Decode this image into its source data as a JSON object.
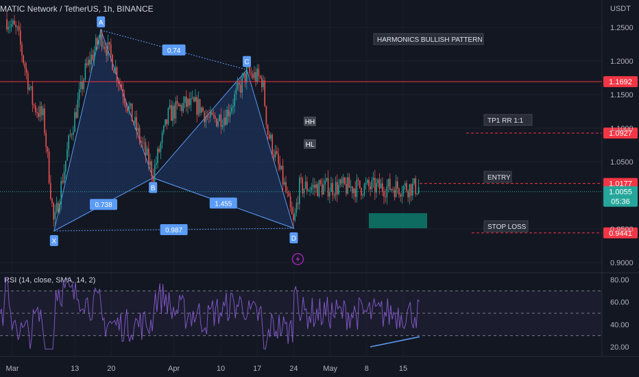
{
  "header": {
    "symbol_title": "MATIC Network / TetherUS, 1h, BINANCE"
  },
  "colors": {
    "bg": "#131722",
    "pattern_fill": "#1f3a6b",
    "pattern_line": "#5b9cf6",
    "up_candle": "#26a69a",
    "down_candle": "#ef5350",
    "rsi_line": "#7e57c2",
    "red_label": "#f23645",
    "current_price_label": "#26a69a",
    "target_box": "#0e7a6a"
  },
  "chart_data": {
    "type": "candlestick",
    "title": "MATIC Network / TetherUS, 1h, BINANCE",
    "price_axis": {
      "unit_label": "USDT",
      "ticks": [
        "1.2500",
        "1.2000",
        "1.1500",
        "1.1000",
        "1.0500",
        "0.9500",
        "0.9000"
      ],
      "ylim": [
        0.88,
        1.28
      ]
    },
    "x_axis": {
      "ticks": [
        "Mar",
        "13",
        "20",
        "Apr",
        "10",
        "17",
        "24",
        "May",
        "8",
        "15"
      ]
    },
    "harmonic_points": [
      {
        "label": "X",
        "date": "Mar 9",
        "price": 0.947
      },
      {
        "label": "A",
        "date": "Mar 18",
        "price": 1.246
      },
      {
        "label": "B",
        "date": "Mar 28",
        "price": 1.026
      },
      {
        "label": "C",
        "date": "Apr 15",
        "price": 1.187
      },
      {
        "label": "D",
        "date": "Apr 24",
        "price": 0.951
      }
    ],
    "ratios": [
      {
        "label": "0.738",
        "between": "X-B"
      },
      {
        "label": "0.74",
        "between": "A-C"
      },
      {
        "label": "1.455",
        "between": "B-D"
      },
      {
        "label": "0.987",
        "between": "X-D"
      }
    ],
    "structure_labels": [
      "HH",
      "HL"
    ],
    "pattern_label": "HARMONICS BULLISH PATTERN",
    "levels": [
      {
        "name": "resistance",
        "price": 1.1692,
        "label": "1.1692"
      },
      {
        "name": "tp1",
        "price": 1.0927,
        "label": "1.0927",
        "text": "TP1 RR 1:1"
      },
      {
        "name": "entry",
        "price": 1.0177,
        "label": "1.0177",
        "text": "ENTRY"
      },
      {
        "name": "stop",
        "price": 0.9441,
        "label": "0.9441",
        "text": "STOP LOSS"
      }
    ],
    "current_price": {
      "price": 1.0055,
      "label": "1.0055",
      "countdown": "05:36"
    },
    "rsi": {
      "title": "RSI (14, close, SMA, 14, 2)",
      "ticks": [
        "80.00",
        "60.00",
        "40.00",
        "20.00"
      ],
      "ylim": [
        15,
        85
      ],
      "upper_band": 70,
      "middle_band": 50,
      "lower_band": 30
    }
  }
}
